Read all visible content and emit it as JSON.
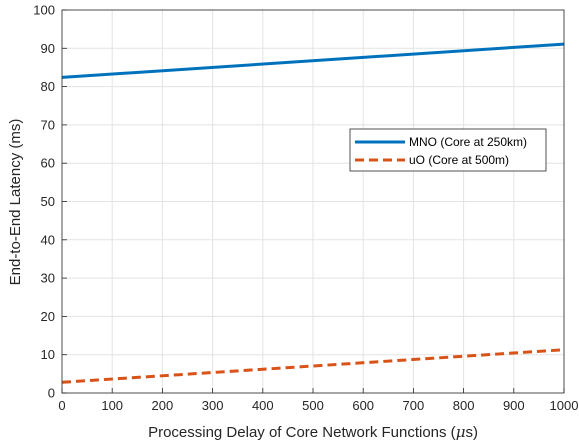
{
  "chart_data": {
    "type": "line",
    "xlabel": "Processing Delay of Core Network Functions (",
    "xlabel_mu": "μ",
    "xlabel_unit": "s)",
    "ylabel": "End-to-End Latency (ms)",
    "xlim": [
      0,
      1000
    ],
    "ylim": [
      0,
      100
    ],
    "xticks": [
      0,
      100,
      200,
      300,
      400,
      500,
      600,
      700,
      800,
      900,
      1000
    ],
    "yticks": [
      0,
      10,
      20,
      30,
      40,
      50,
      60,
      70,
      80,
      90,
      100
    ],
    "grid": true,
    "legend_position": "center-right",
    "series": [
      {
        "name": "MNO (Core at 250km)",
        "color": "#0072BD",
        "style": "solid",
        "x": [
          0,
          1000
        ],
        "values": [
          82.4,
          91.1
        ]
      },
      {
        "name": "uO (Core at 500m)",
        "color": "#D95319",
        "style": "dashed",
        "x": [
          0,
          1000
        ],
        "values": [
          2.8,
          11.3
        ]
      }
    ]
  }
}
